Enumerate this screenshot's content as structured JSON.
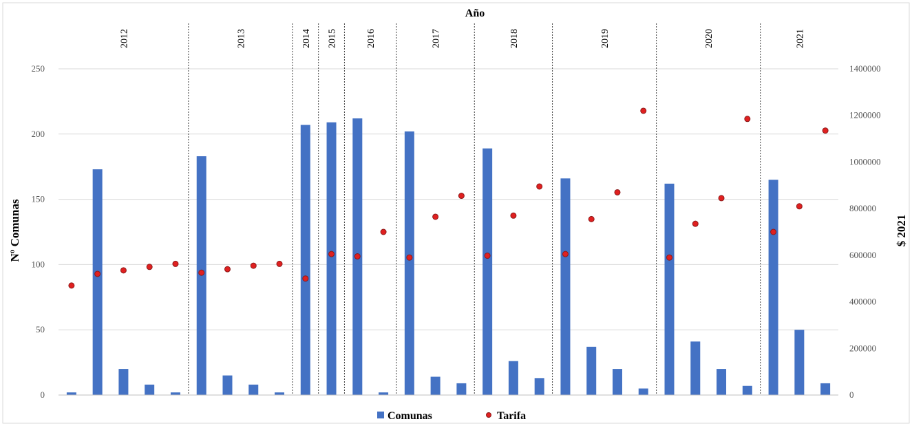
{
  "chart_data": {
    "type": "bar+scatter",
    "title": "Año",
    "ylabel_left": "Nº Comunas",
    "ylabel_right": "$ 2021",
    "ylim_left": [
      0,
      250
    ],
    "ylim_right": [
      0,
      1400000
    ],
    "yticks_left": [
      "0",
      "50",
      "100",
      "150",
      "200",
      "250"
    ],
    "yticks_right": [
      "0",
      "200000",
      "400000",
      "600000",
      "800000",
      "1000000",
      "1200000",
      "1400000"
    ],
    "grid": true,
    "legend_position": "bottom",
    "years": [
      {
        "label": "2012",
        "count": 5
      },
      {
        "label": "2013",
        "count": 4
      },
      {
        "label": "2014",
        "count": 1
      },
      {
        "label": "2015",
        "count": 1
      },
      {
        "label": "2016",
        "count": 2
      },
      {
        "label": "2017",
        "count": 3
      },
      {
        "label": "2018",
        "count": 3
      },
      {
        "label": "2019",
        "count": 4
      },
      {
        "label": "2020",
        "count": 4
      },
      {
        "label": "2021",
        "count": 3
      }
    ],
    "series": [
      {
        "name": "Comunas",
        "color": "#4472C4",
        "values": [
          2,
          173,
          20,
          8,
          2,
          183,
          15,
          8,
          2,
          207,
          209,
          212,
          2,
          202,
          14,
          9,
          189,
          26,
          13,
          166,
          37,
          20,
          5,
          162,
          41,
          20,
          7,
          165,
          50,
          9
        ]
      },
      {
        "name": "Tarifa",
        "color": "#E02020",
        "values": [
          470000,
          520000,
          535000,
          550000,
          563000,
          525000,
          540000,
          555000,
          563000,
          500000,
          605000,
          595000,
          700000,
          590000,
          765000,
          855000,
          598000,
          770000,
          895000,
          605000,
          755000,
          870000,
          1220000,
          590000,
          735000,
          845000,
          1185000,
          700000,
          810000,
          1135000
        ]
      }
    ]
  }
}
